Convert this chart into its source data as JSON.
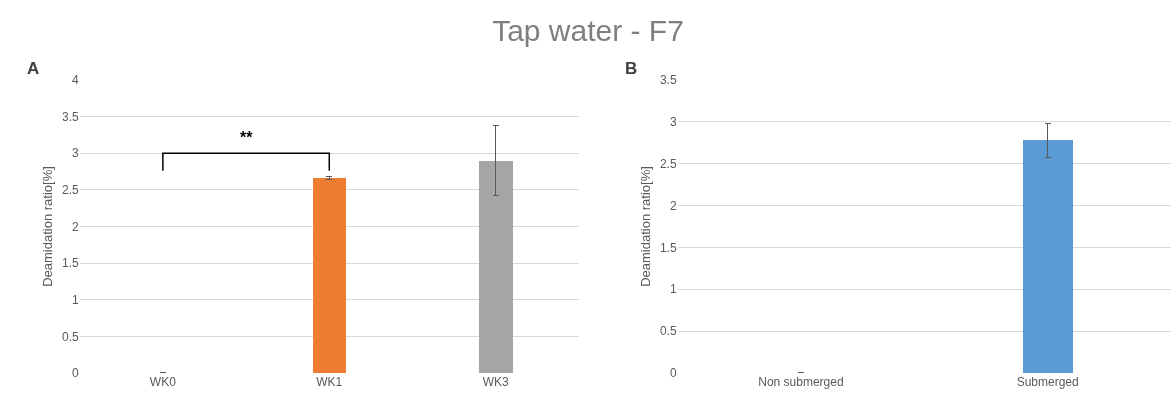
{
  "chart_data": [
    {
      "type": "bar",
      "title": "Tap water - F7",
      "ylabel": "Deamidation ratio[%]",
      "categories": [
        "WK0",
        "WK1",
        "WK3"
      ],
      "values": [
        0,
        2.66,
        2.89
      ],
      "colors": [
        "#ed7d31",
        "#ed7d31",
        "#a5a5a5"
      ],
      "errors": [
        null,
        [
          2.64,
          2.68
        ],
        [
          2.42,
          3.38
        ]
      ],
      "ylim": [
        0,
        4
      ],
      "yticks": [
        0,
        0.5,
        1,
        1.5,
        2,
        2.5,
        3,
        3.5,
        4
      ],
      "grid": "y",
      "legend": false,
      "annotations": [
        "A",
        "**"
      ]
    },
    {
      "type": "bar",
      "ylabel": "Deamidation ratio[%]",
      "categories": [
        "Non submerged",
        "Submerged"
      ],
      "values": [
        0,
        2.78
      ],
      "colors": [
        "#5b9bd5",
        "#5b9bd5"
      ],
      "errors": [
        null,
        [
          2.57,
          2.98
        ]
      ],
      "ylim": [
        0,
        3.5
      ],
      "yticks": [
        0,
        0.5,
        1,
        1.5,
        2,
        2.5,
        3,
        3.5
      ],
      "grid": "y",
      "legend": false,
      "annotations": [
        "B"
      ]
    }
  ]
}
